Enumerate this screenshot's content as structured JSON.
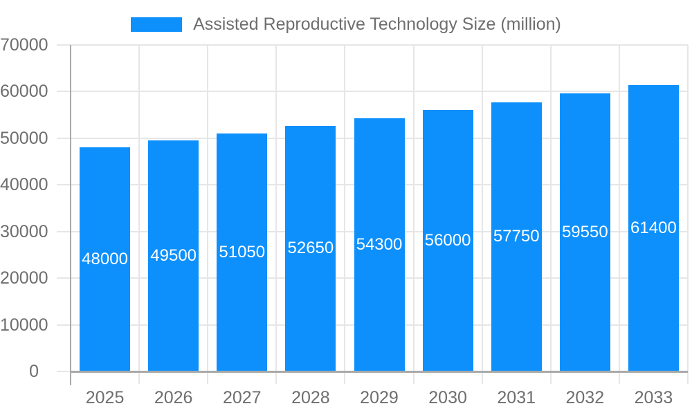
{
  "chart_data": {
    "type": "bar",
    "title": "Assisted Reproductive Technology Size (million)",
    "legend_label": "Assisted Reproductive Technology Size (million)",
    "legend_position": "top",
    "categories": [
      "2025",
      "2026",
      "2027",
      "2028",
      "2029",
      "2030",
      "2031",
      "2032",
      "2033"
    ],
    "values": [
      48000,
      49500,
      51050,
      52650,
      54300,
      56000,
      57750,
      59550,
      61400
    ],
    "xlabel": "",
    "ylabel": "",
    "ylim": [
      0,
      70000
    ],
    "yticks": [
      0,
      10000,
      20000,
      30000,
      40000,
      50000,
      60000,
      70000
    ],
    "grid": true,
    "colors": {
      "bar": "#0d90fc",
      "value_label": "#ffffff",
      "axis_line": "#a9a9a9",
      "grid_line": "#e6e6e6",
      "tick_text": "#6e6e6e",
      "background": "#ffffff"
    }
  }
}
